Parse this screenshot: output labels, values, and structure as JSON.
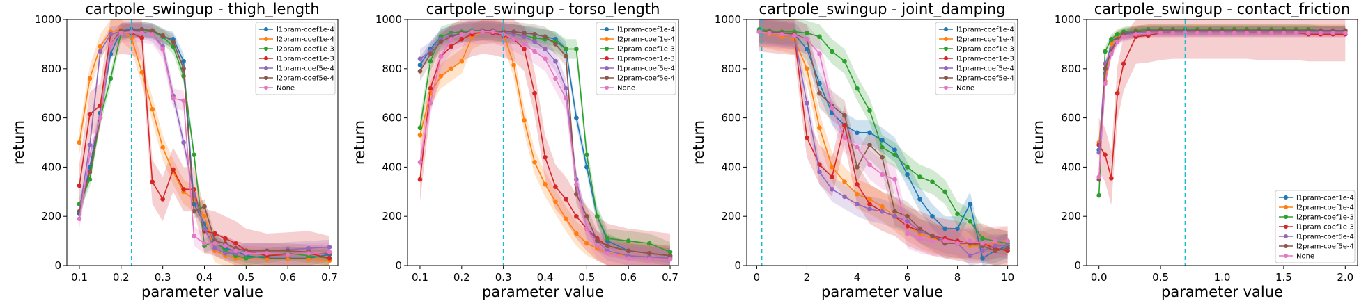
{
  "series_names": [
    "l1pram-coef1e-4",
    "l2pram-coef1e-4",
    "l2pram-coef1e-3",
    "l1pram-coef1e-3",
    "l1pram-coef5e-4",
    "l2pram-coef5e-4",
    "None"
  ],
  "series_colors": [
    "#1f77b4",
    "#ff7f0e",
    "#2ca02c",
    "#d62728",
    "#9467bd",
    "#8c564b",
    "#e377c2"
  ],
  "vline_color": "#17becf",
  "chart_data": [
    {
      "type": "line",
      "title": "cartpole_swingup - thigh_length",
      "xlabel": "parameter value",
      "ylabel": "return",
      "xlim": [
        0.07,
        0.72
      ],
      "ylim": [
        0,
        1000
      ],
      "xticks": [
        "0.1",
        "0.2",
        "0.3",
        "0.4",
        "0.5",
        "0.6",
        "0.7"
      ],
      "yticks": [
        "0",
        "200",
        "400",
        "600",
        "800",
        "1000"
      ],
      "vline": 0.225,
      "legend": "top-right",
      "x": [
        0.1,
        0.125,
        0.15,
        0.175,
        0.2,
        0.225,
        0.25,
        0.275,
        0.3,
        0.325,
        0.35,
        0.375,
        0.4,
        0.425,
        0.45,
        0.475,
        0.5,
        0.55,
        0.6,
        0.65,
        0.7
      ],
      "series": [
        {
          "name": "l1pram-coef1e-4",
          "values": [
            210,
            400,
            620,
            860,
            955,
            960,
            960,
            955,
            930,
            920,
            830,
            250,
            170,
            90,
            70,
            60,
            40,
            30,
            30,
            30,
            45
          ],
          "band": 30
        },
        {
          "name": "l2pram-coef1e-4",
          "values": [
            500,
            760,
            890,
            950,
            960,
            925,
            785,
            635,
            480,
            380,
            300,
            270,
            200,
            60,
            40,
            30,
            30,
            25,
            25,
            25,
            20
          ],
          "band": 50
        },
        {
          "name": "l2pram-coef1e-3",
          "values": [
            250,
            350,
            600,
            760,
            945,
            955,
            955,
            950,
            930,
            890,
            770,
            450,
            80,
            100,
            60,
            40,
            30,
            40,
            50,
            40,
            30
          ],
          "band": 30
        },
        {
          "name": "l1pram-coef1e-3",
          "values": [
            325,
            615,
            650,
            940,
            950,
            945,
            925,
            340,
            270,
            390,
            310,
            310,
            140,
            130,
            110,
            90,
            60,
            40,
            45,
            50,
            30
          ],
          "band": 90
        },
        {
          "name": "l1pram-coef5e-4",
          "values": [
            220,
            490,
            870,
            940,
            950,
            955,
            950,
            940,
            890,
            690,
            500,
            290,
            150,
            70,
            50,
            50,
            60,
            60,
            65,
            70,
            75
          ],
          "band": 30
        },
        {
          "name": "l2pram-coef5e-4",
          "values": [
            220,
            380,
            600,
            900,
            955,
            955,
            960,
            955,
            935,
            910,
            800,
            220,
            240,
            100,
            90,
            70,
            60,
            60,
            60,
            55,
            50
          ],
          "band": 30
        },
        {
          "name": "None",
          "values": [
            190,
            450,
            600,
            900,
            945,
            950,
            945,
            940,
            880,
            680,
            670,
            120,
            90,
            90,
            80,
            60,
            50,
            50,
            45,
            50,
            55
          ],
          "band": 40
        }
      ]
    },
    {
      "type": "line",
      "title": "cartpole_swingup - torso_length",
      "xlabel": "parameter value",
      "ylabel": "return",
      "xlim": [
        0.07,
        0.72
      ],
      "ylim": [
        0,
        1000
      ],
      "xticks": [
        "0.1",
        "0.2",
        "0.3",
        "0.4",
        "0.5",
        "0.6",
        "0.7"
      ],
      "yticks": [
        "0",
        "200",
        "400",
        "600",
        "800",
        "1000"
      ],
      "vline": 0.3,
      "legend": "top-right",
      "x": [
        0.1,
        0.125,
        0.15,
        0.175,
        0.2,
        0.225,
        0.25,
        0.275,
        0.3,
        0.325,
        0.35,
        0.375,
        0.4,
        0.425,
        0.45,
        0.475,
        0.5,
        0.525,
        0.55,
        0.6,
        0.65,
        0.7
      ],
      "series": [
        {
          "name": "l1pram-coef1e-4",
          "values": [
            815,
            880,
            930,
            945,
            950,
            955,
            955,
            955,
            950,
            950,
            945,
            940,
            930,
            920,
            880,
            600,
            400,
            200,
            100,
            60,
            50,
            40
          ],
          "band": 30
        },
        {
          "name": "l2pram-coef1e-4",
          "values": [
            530,
            700,
            770,
            800,
            830,
            930,
            950,
            955,
            945,
            815,
            590,
            420,
            330,
            260,
            190,
            130,
            90,
            70,
            50,
            40,
            35,
            30
          ],
          "band": 50
        },
        {
          "name": "l2pram-coef1e-3",
          "values": [
            560,
            830,
            930,
            945,
            950,
            955,
            955,
            950,
            945,
            940,
            935,
            925,
            920,
            910,
            880,
            880,
            450,
            200,
            110,
            100,
            90,
            55
          ],
          "band": 40
        },
        {
          "name": "l1pram-coef1e-3",
          "values": [
            350,
            720,
            850,
            890,
            920,
            940,
            950,
            945,
            935,
            920,
            880,
            700,
            440,
            320,
            270,
            200,
            150,
            110,
            80,
            60,
            50,
            40
          ],
          "band": 90
        },
        {
          "name": "l1pram-coef5e-4",
          "values": [
            840,
            870,
            920,
            935,
            945,
            950,
            955,
            955,
            945,
            940,
            930,
            910,
            880,
            830,
            720,
            350,
            150,
            100,
            60,
            40,
            35,
            30
          ],
          "band": 40
        },
        {
          "name": "l2pram-coef5e-4",
          "values": [
            790,
            860,
            910,
            930,
            945,
            950,
            955,
            955,
            950,
            950,
            945,
            940,
            930,
            900,
            850,
            290,
            200,
            100,
            80,
            60,
            50,
            40
          ],
          "band": 40
        },
        {
          "name": "None",
          "values": [
            420,
            660,
            850,
            920,
            940,
            950,
            950,
            950,
            940,
            920,
            900,
            870,
            840,
            760,
            680,
            330,
            150,
            80,
            50,
            30,
            25,
            25
          ],
          "band": 50
        }
      ]
    },
    {
      "type": "line",
      "title": "cartpole_swingup - joint_damping",
      "xlabel": "parameter value",
      "ylabel": "return",
      "xlim": [
        -0.4,
        10.4
      ],
      "ylim": [
        0,
        1000
      ],
      "xticks": [
        "0",
        "2",
        "4",
        "6",
        "8",
        "10"
      ],
      "yticks": [
        "0",
        "200",
        "400",
        "600",
        "800",
        "1000"
      ],
      "vline": 0.2,
      "legend": "top-right",
      "x": [
        0.1,
        0.5,
        1.0,
        1.5,
        2.0,
        2.5,
        3.0,
        3.5,
        4.0,
        4.5,
        5.0,
        5.5,
        6.0,
        6.5,
        7.0,
        7.5,
        8.0,
        8.5,
        9.0,
        9.5,
        10.0
      ],
      "series": [
        {
          "name": "l1pram-coef1e-4",
          "values": [
            955,
            950,
            945,
            940,
            880,
            740,
            620,
            570,
            540,
            540,
            510,
            470,
            370,
            270,
            200,
            150,
            150,
            250,
            30,
            60,
            80
          ],
          "band": 50
        },
        {
          "name": "l2pram-coef1e-4",
          "values": [
            950,
            940,
            930,
            920,
            800,
            560,
            400,
            340,
            290,
            270,
            240,
            200,
            160,
            130,
            110,
            100,
            90,
            80,
            80,
            90,
            100
          ],
          "band": 60
        },
        {
          "name": "l2pram-coef1e-3",
          "values": [
            960,
            955,
            950,
            950,
            945,
            930,
            870,
            830,
            720,
            630,
            480,
            450,
            400,
            360,
            340,
            300,
            210,
            180,
            110,
            100,
            90
          ],
          "band": 50
        },
        {
          "name": "l1pram-coef1e-3",
          "values": [
            950,
            945,
            940,
            935,
            520,
            410,
            360,
            570,
            330,
            250,
            220,
            200,
            160,
            140,
            120,
            110,
            100,
            90,
            90,
            70,
            60
          ],
          "band": 80
        },
        {
          "name": "l1pram-coef5e-4",
          "values": [
            950,
            945,
            940,
            935,
            660,
            380,
            310,
            280,
            250,
            230,
            220,
            200,
            180,
            140,
            120,
            100,
            90,
            40,
            60,
            80,
            80
          ],
          "band": 50
        },
        {
          "name": "l2pram-coef5e-4",
          "values": [
            950,
            950,
            945,
            940,
            920,
            700,
            650,
            610,
            400,
            490,
            440,
            220,
            200,
            150,
            120,
            90,
            90,
            90,
            80,
            60,
            70
          ],
          "band": 60
        },
        {
          "name": "None",
          "values": [
            950,
            945,
            940,
            935,
            920,
            860,
            640,
            520,
            480,
            410,
            370,
            350,
            130,
            110,
            100,
            100,
            90,
            100,
            90,
            100,
            100
          ],
          "band": 60
        }
      ]
    },
    {
      "type": "line",
      "title": "cartpole_swingup - contact_friction",
      "xlabel": "parameter value",
      "ylabel": "return",
      "xlim": [
        -0.1,
        2.1
      ],
      "ylim": [
        0,
        1000
      ],
      "xticks": [
        "0.0",
        "0.5",
        "1.0",
        "1.5",
        "2.0"
      ],
      "yticks": [
        "0",
        "200",
        "400",
        "600",
        "800",
        "1000"
      ],
      "vline": 0.7,
      "legend": "bottom-right",
      "x": [
        0.0,
        0.05,
        0.1,
        0.15,
        0.2,
        0.3,
        0.4,
        0.5,
        0.6,
        0.7,
        0.8,
        0.9,
        1.0,
        1.1,
        1.2,
        1.3,
        1.4,
        1.5,
        1.6,
        1.7,
        1.8,
        1.9,
        2.0
      ],
      "series": [
        {
          "name": "l1pram-coef1e-4",
          "values": [
            470,
            780,
            910,
            930,
            945,
            950,
            955,
            955,
            955,
            955,
            955,
            955,
            955,
            955,
            955,
            955,
            955,
            955,
            955,
            955,
            955,
            955,
            955
          ],
          "band": 20
        },
        {
          "name": "l2pram-coef1e-4",
          "values": [
            500,
            750,
            900,
            930,
            940,
            950,
            955,
            955,
            955,
            955,
            955,
            955,
            955,
            955,
            955,
            955,
            955,
            955,
            955,
            955,
            955,
            955,
            955
          ],
          "band": 25
        },
        {
          "name": "l2pram-coef1e-3",
          "values": [
            285,
            870,
            920,
            940,
            950,
            955,
            960,
            960,
            960,
            960,
            960,
            960,
            960,
            960,
            960,
            960,
            960,
            960,
            960,
            960,
            955,
            955,
            955
          ],
          "band": 20
        },
        {
          "name": "l1pram-coef1e-3",
          "values": [
            490,
            450,
            355,
            700,
            820,
            930,
            935,
            945,
            950,
            950,
            950,
            950,
            950,
            950,
            950,
            945,
            945,
            945,
            945,
            940,
            940,
            940,
            940
          ],
          "band": 110
        },
        {
          "name": "l1pram-coef5e-4",
          "values": [
            460,
            820,
            880,
            920,
            935,
            945,
            950,
            950,
            950,
            950,
            950,
            950,
            950,
            950,
            950,
            950,
            950,
            950,
            950,
            950,
            950,
            950,
            950
          ],
          "band": 20
        },
        {
          "name": "l2pram-coef5e-4",
          "values": [
            350,
            800,
            870,
            920,
            940,
            950,
            955,
            955,
            955,
            955,
            955,
            955,
            955,
            955,
            955,
            955,
            955,
            955,
            955,
            955,
            955,
            955,
            955
          ],
          "band": 20
        },
        {
          "name": "None",
          "values": [
            360,
            740,
            860,
            910,
            930,
            940,
            945,
            945,
            945,
            945,
            945,
            945,
            945,
            945,
            945,
            945,
            945,
            945,
            945,
            945,
            945,
            945,
            945
          ],
          "band": 20
        }
      ]
    }
  ]
}
